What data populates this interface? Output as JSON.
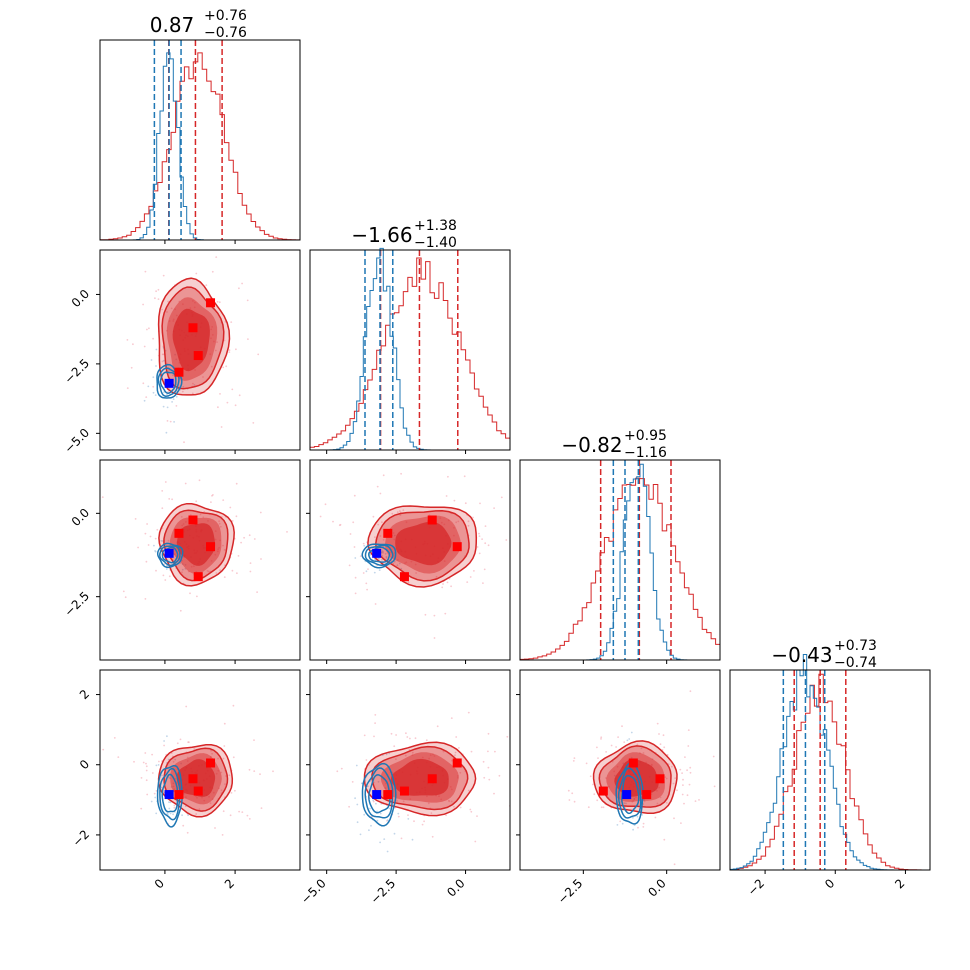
{
  "chart_data": {
    "type": "corner",
    "parameters": 4,
    "colors": {
      "a": "#d62728",
      "b": "#1f77b4",
      "marker_red": "#ff0000",
      "marker_blue": "#0000ff"
    },
    "titles": [
      {
        "median": "0.87",
        "plus": "+0.76",
        "minus": "−0.76"
      },
      {
        "median": "−1.66",
        "plus": "+1.38",
        "minus": "−1.40"
      },
      {
        "median": "−0.82",
        "plus": "+0.95",
        "minus": "−1.16"
      },
      {
        "median": "−0.43",
        "plus": "+0.73",
        "minus": "−0.74"
      }
    ],
    "ranges": [
      [
        -1.85,
        3.85
      ],
      [
        -5.6,
        1.6
      ],
      [
        -4.4,
        1.6
      ],
      [
        -3.0,
        2.7
      ]
    ],
    "xticks": [
      {
        "values": [
          0,
          2
        ],
        "labels": [
          "0",
          "2"
        ]
      },
      {
        "values": [
          -5,
          -2.5,
          0
        ],
        "labels": [
          "−5.0",
          "−2.5",
          "0.0"
        ]
      },
      {
        "values": [
          -2.5,
          0
        ],
        "labels": [
          "−2.5",
          "0.0"
        ]
      },
      {
        "values": [
          -2,
          0,
          2
        ],
        "labels": [
          "−2",
          "0",
          "2"
        ]
      }
    ],
    "yticks": [
      null,
      {
        "values": [
          -5,
          -2.5,
          0
        ],
        "labels": [
          "−5.0",
          "−2.5",
          "0.0"
        ]
      },
      {
        "values": [
          -2.5,
          0
        ],
        "labels": [
          "−2.5",
          "0.0"
        ]
      },
      {
        "values": [
          -2,
          0,
          2
        ],
        "labels": [
          "−2",
          "0",
          "2"
        ]
      }
    ],
    "marginals": [
      {
        "a": {
          "mean": 0.95,
          "sd": 0.74,
          "quantiles": [
            0.11,
            0.87,
            1.63
          ]
        },
        "b": {
          "mean": 0.1,
          "sd": 0.25,
          "quantiles": [
            -0.3,
            0.12,
            0.46
          ]
        }
      },
      {
        "a": {
          "mean": -1.6,
          "sd": 1.35,
          "quantiles": [
            -3.06,
            -1.66,
            -0.28
          ]
        },
        "b": {
          "mean": -3.1,
          "sd": 0.45,
          "quantiles": [
            -3.62,
            -3.08,
            -2.62
          ]
        }
      },
      {
        "a": {
          "mean": -0.8,
          "sd": 1.05,
          "quantiles": [
            -1.98,
            -0.82,
            0.13
          ]
        },
        "b": {
          "mean": -0.9,
          "sd": 0.38,
          "quantiles": [
            -1.6,
            -1.25,
            -0.85
          ]
        }
      },
      {
        "a": {
          "mean": -0.45,
          "sd": 0.72,
          "quantiles": [
            -1.17,
            -0.43,
            0.3
          ]
        },
        "b": {
          "mean": -0.85,
          "sd": 0.62,
          "quantiles": [
            -1.48,
            -0.85,
            -0.3
          ]
        }
      }
    ],
    "points_a": [
      [
        1.3,
        -0.3,
        -1.0,
        0.05
      ],
      [
        0.8,
        -1.2,
        -0.2,
        -0.4
      ],
      [
        0.95,
        -2.2,
        -1.9,
        -0.75
      ],
      [
        0.4,
        -2.8,
        -0.6,
        -0.85
      ]
    ],
    "points_b": [
      0.12,
      -3.2,
      -1.2,
      -0.85
    ],
    "joint": {
      "1,0": {
        "a": {
          "cx": 0.75,
          "cy": -1.6,
          "rx": 1.0,
          "ry": 2.1
        },
        "b": {
          "cx": 0.1,
          "cy": -3.15,
          "rx": 0.35,
          "ry": 0.6
        }
      },
      "2,0": {
        "a": {
          "cx": 0.9,
          "cy": -0.9,
          "rx": 1.05,
          "ry": 1.2
        },
        "b": {
          "cx": 0.15,
          "cy": -1.25,
          "rx": 0.35,
          "ry": 0.35
        }
      },
      "2,1": {
        "a": {
          "cx": -1.5,
          "cy": -0.9,
          "rx": 1.95,
          "ry": 1.2
        },
        "b": {
          "cx": -3.1,
          "cy": -1.25,
          "rx": 0.6,
          "ry": 0.35
        }
      },
      "3,0": {
        "a": {
          "cx": 0.9,
          "cy": -0.4,
          "rx": 1.05,
          "ry": 1.0
        },
        "b": {
          "cx": 0.15,
          "cy": -0.85,
          "rx": 0.35,
          "ry": 0.85
        }
      },
      "3,1": {
        "a": {
          "cx": -1.6,
          "cy": -0.4,
          "rx": 2.0,
          "ry": 1.0
        },
        "b": {
          "cx": -3.1,
          "cy": -0.85,
          "rx": 0.6,
          "ry": 0.85
        }
      },
      "3,2": {
        "a": {
          "cx": -0.9,
          "cy": -0.4,
          "rx": 1.25,
          "ry": 1.0
        },
        "b": {
          "cx": -1.1,
          "cy": -0.85,
          "rx": 0.4,
          "ry": 0.85
        }
      }
    }
  }
}
